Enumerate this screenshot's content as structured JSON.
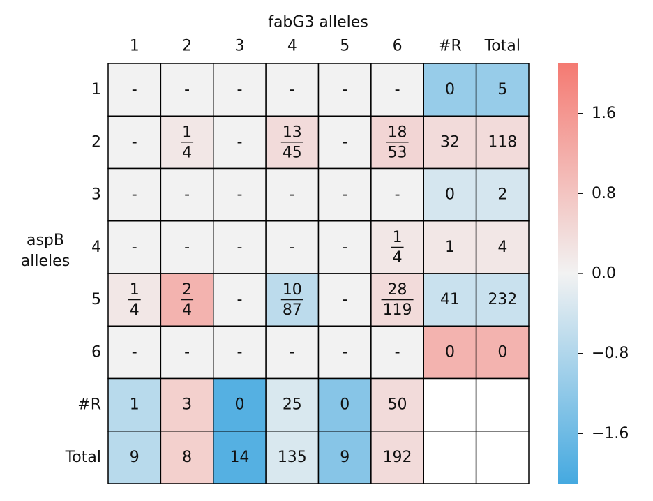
{
  "chart_data": {
    "type": "heatmap",
    "title": "fabG3 alleles",
    "ylabel": "aspB alleles",
    "x_categories": [
      "1",
      "2",
      "3",
      "4",
      "5",
      "6",
      "#R",
      "Total"
    ],
    "y_categories": [
      "1",
      "2",
      "3",
      "4",
      "5",
      "6",
      "#R",
      "Total"
    ],
    "values": [
      [
        null,
        null,
        null,
        null,
        null,
        null,
        -1.1,
        -1.1
      ],
      [
        null,
        0.2,
        null,
        0.4,
        null,
        0.5,
        0.4,
        0.4
      ],
      [
        null,
        null,
        null,
        null,
        null,
        null,
        -0.35,
        -0.35
      ],
      [
        null,
        null,
        null,
        null,
        null,
        0.2,
        0.2,
        0.2
      ],
      [
        0.2,
        1.1,
        null,
        -0.65,
        null,
        0.4,
        -0.5,
        -0.5
      ],
      [
        null,
        null,
        null,
        null,
        null,
        null,
        1.1,
        1.1
      ],
      [
        -0.7,
        0.6,
        -1.9,
        -0.3,
        -1.3,
        0.4,
        null,
        null
      ],
      [
        -0.7,
        0.6,
        -1.9,
        -0.3,
        -1.3,
        0.4,
        null,
        null
      ]
    ],
    "cell_labels": [
      [
        "-",
        "-",
        "-",
        "-",
        "-",
        "-",
        "0",
        "5"
      ],
      [
        "-",
        {
          "numerator": "1",
          "denominator": "4"
        },
        "-",
        {
          "numerator": "13",
          "denominator": "45"
        },
        "-",
        {
          "numerator": "18",
          "denominator": "53"
        },
        "32",
        "118"
      ],
      [
        "-",
        "-",
        "-",
        "-",
        "-",
        "-",
        "0",
        "2"
      ],
      [
        "-",
        "-",
        "-",
        "-",
        "-",
        {
          "numerator": "1",
          "denominator": "4"
        },
        "1",
        "4"
      ],
      [
        {
          "numerator": "1",
          "denominator": "4"
        },
        {
          "numerator": "2",
          "denominator": "4"
        },
        "-",
        {
          "numerator": "10",
          "denominator": "87"
        },
        "-",
        {
          "numerator": "28",
          "denominator": "119"
        },
        "41",
        "232"
      ],
      [
        "-",
        "-",
        "-",
        "-",
        "-",
        "-",
        "0",
        "0"
      ],
      [
        "1",
        "3",
        "0",
        "25",
        "0",
        "50",
        null,
        null
      ],
      [
        "9",
        "8",
        "14",
        "135",
        "9",
        "192",
        null,
        null
      ]
    ],
    "na_color": "#f2f2f2",
    "cmap_colors": [
      "#45a9e0",
      "#f2f2f2",
      "#f47a72"
    ],
    "vlim": [
      -2.1,
      2.1
    ],
    "cticks": [
      {
        "value": -1.6,
        "label": "−1.6"
      },
      {
        "value": -0.8,
        "label": "−0.8"
      },
      {
        "value": 0,
        "label": "0.0"
      },
      {
        "value": 0.8,
        "label": "0.8"
      },
      {
        "value": 1.6,
        "label": "1.6"
      }
    ]
  }
}
